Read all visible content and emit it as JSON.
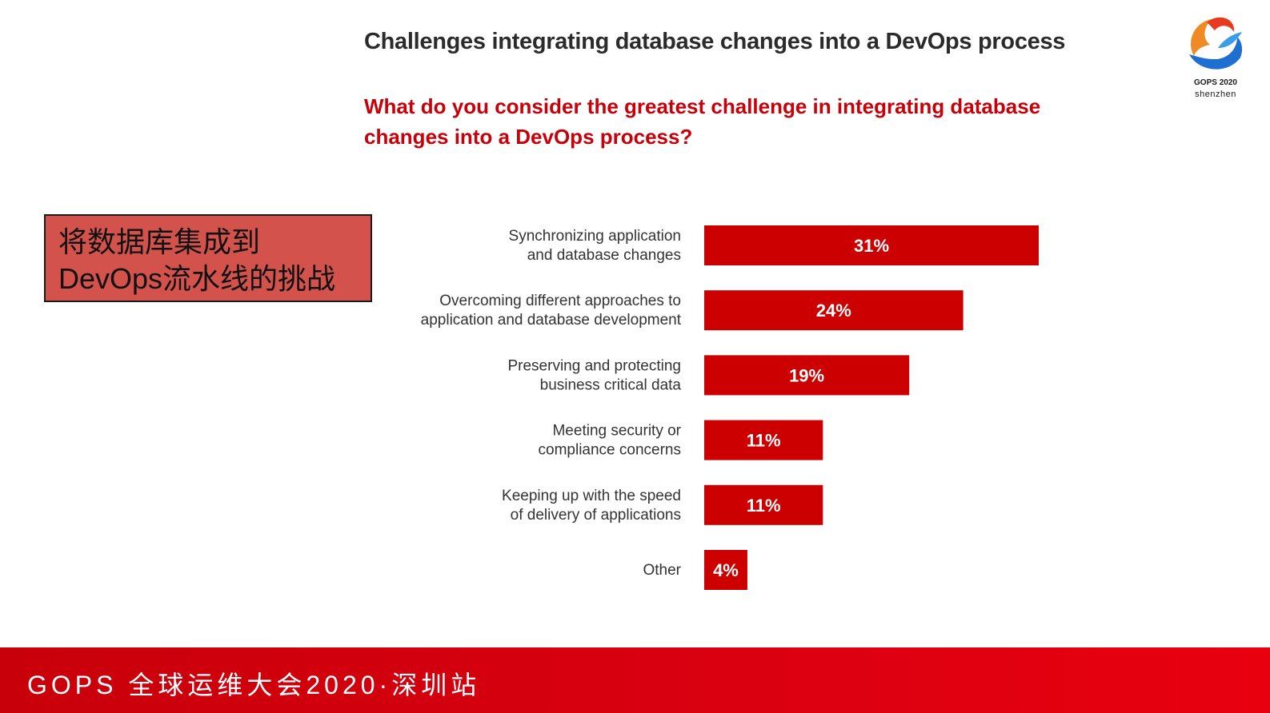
{
  "header": {
    "title": "Challenges integrating database changes into a DevOps process",
    "question": "What do you consider the greatest challenge in integrating database changes into a DevOps process?"
  },
  "callout": {
    "line1": "将数据库集成到",
    "line2": "DevOps流水线的挑战"
  },
  "logo": {
    "line1": "GOPS 2020",
    "line2": "shenzhen"
  },
  "footer": {
    "text": "GOPS 全球运维大会2020·深圳站"
  },
  "colors": {
    "bar": "#cc0000",
    "accent": "#c8000a"
  },
  "chart_data": {
    "type": "bar",
    "orientation": "horizontal",
    "title": "Challenges integrating database changes into a DevOps process",
    "categories": [
      [
        "Synchronizing application",
        "and database changes"
      ],
      [
        "Overcoming different approaches to",
        "application and database development"
      ],
      [
        "Preserving and protecting",
        "business critical data"
      ],
      [
        "Meeting security or",
        "compliance concerns"
      ],
      [
        "Keeping up with the speed",
        "of delivery of applications"
      ],
      [
        "Other"
      ]
    ],
    "values": [
      31,
      24,
      19,
      11,
      11,
      4
    ],
    "value_labels": [
      "31%",
      "24%",
      "19%",
      "11%",
      "11%",
      "4%"
    ],
    "unit": "%",
    "xlim": [
      0,
      31
    ],
    "grid": false,
    "legend": "none"
  }
}
